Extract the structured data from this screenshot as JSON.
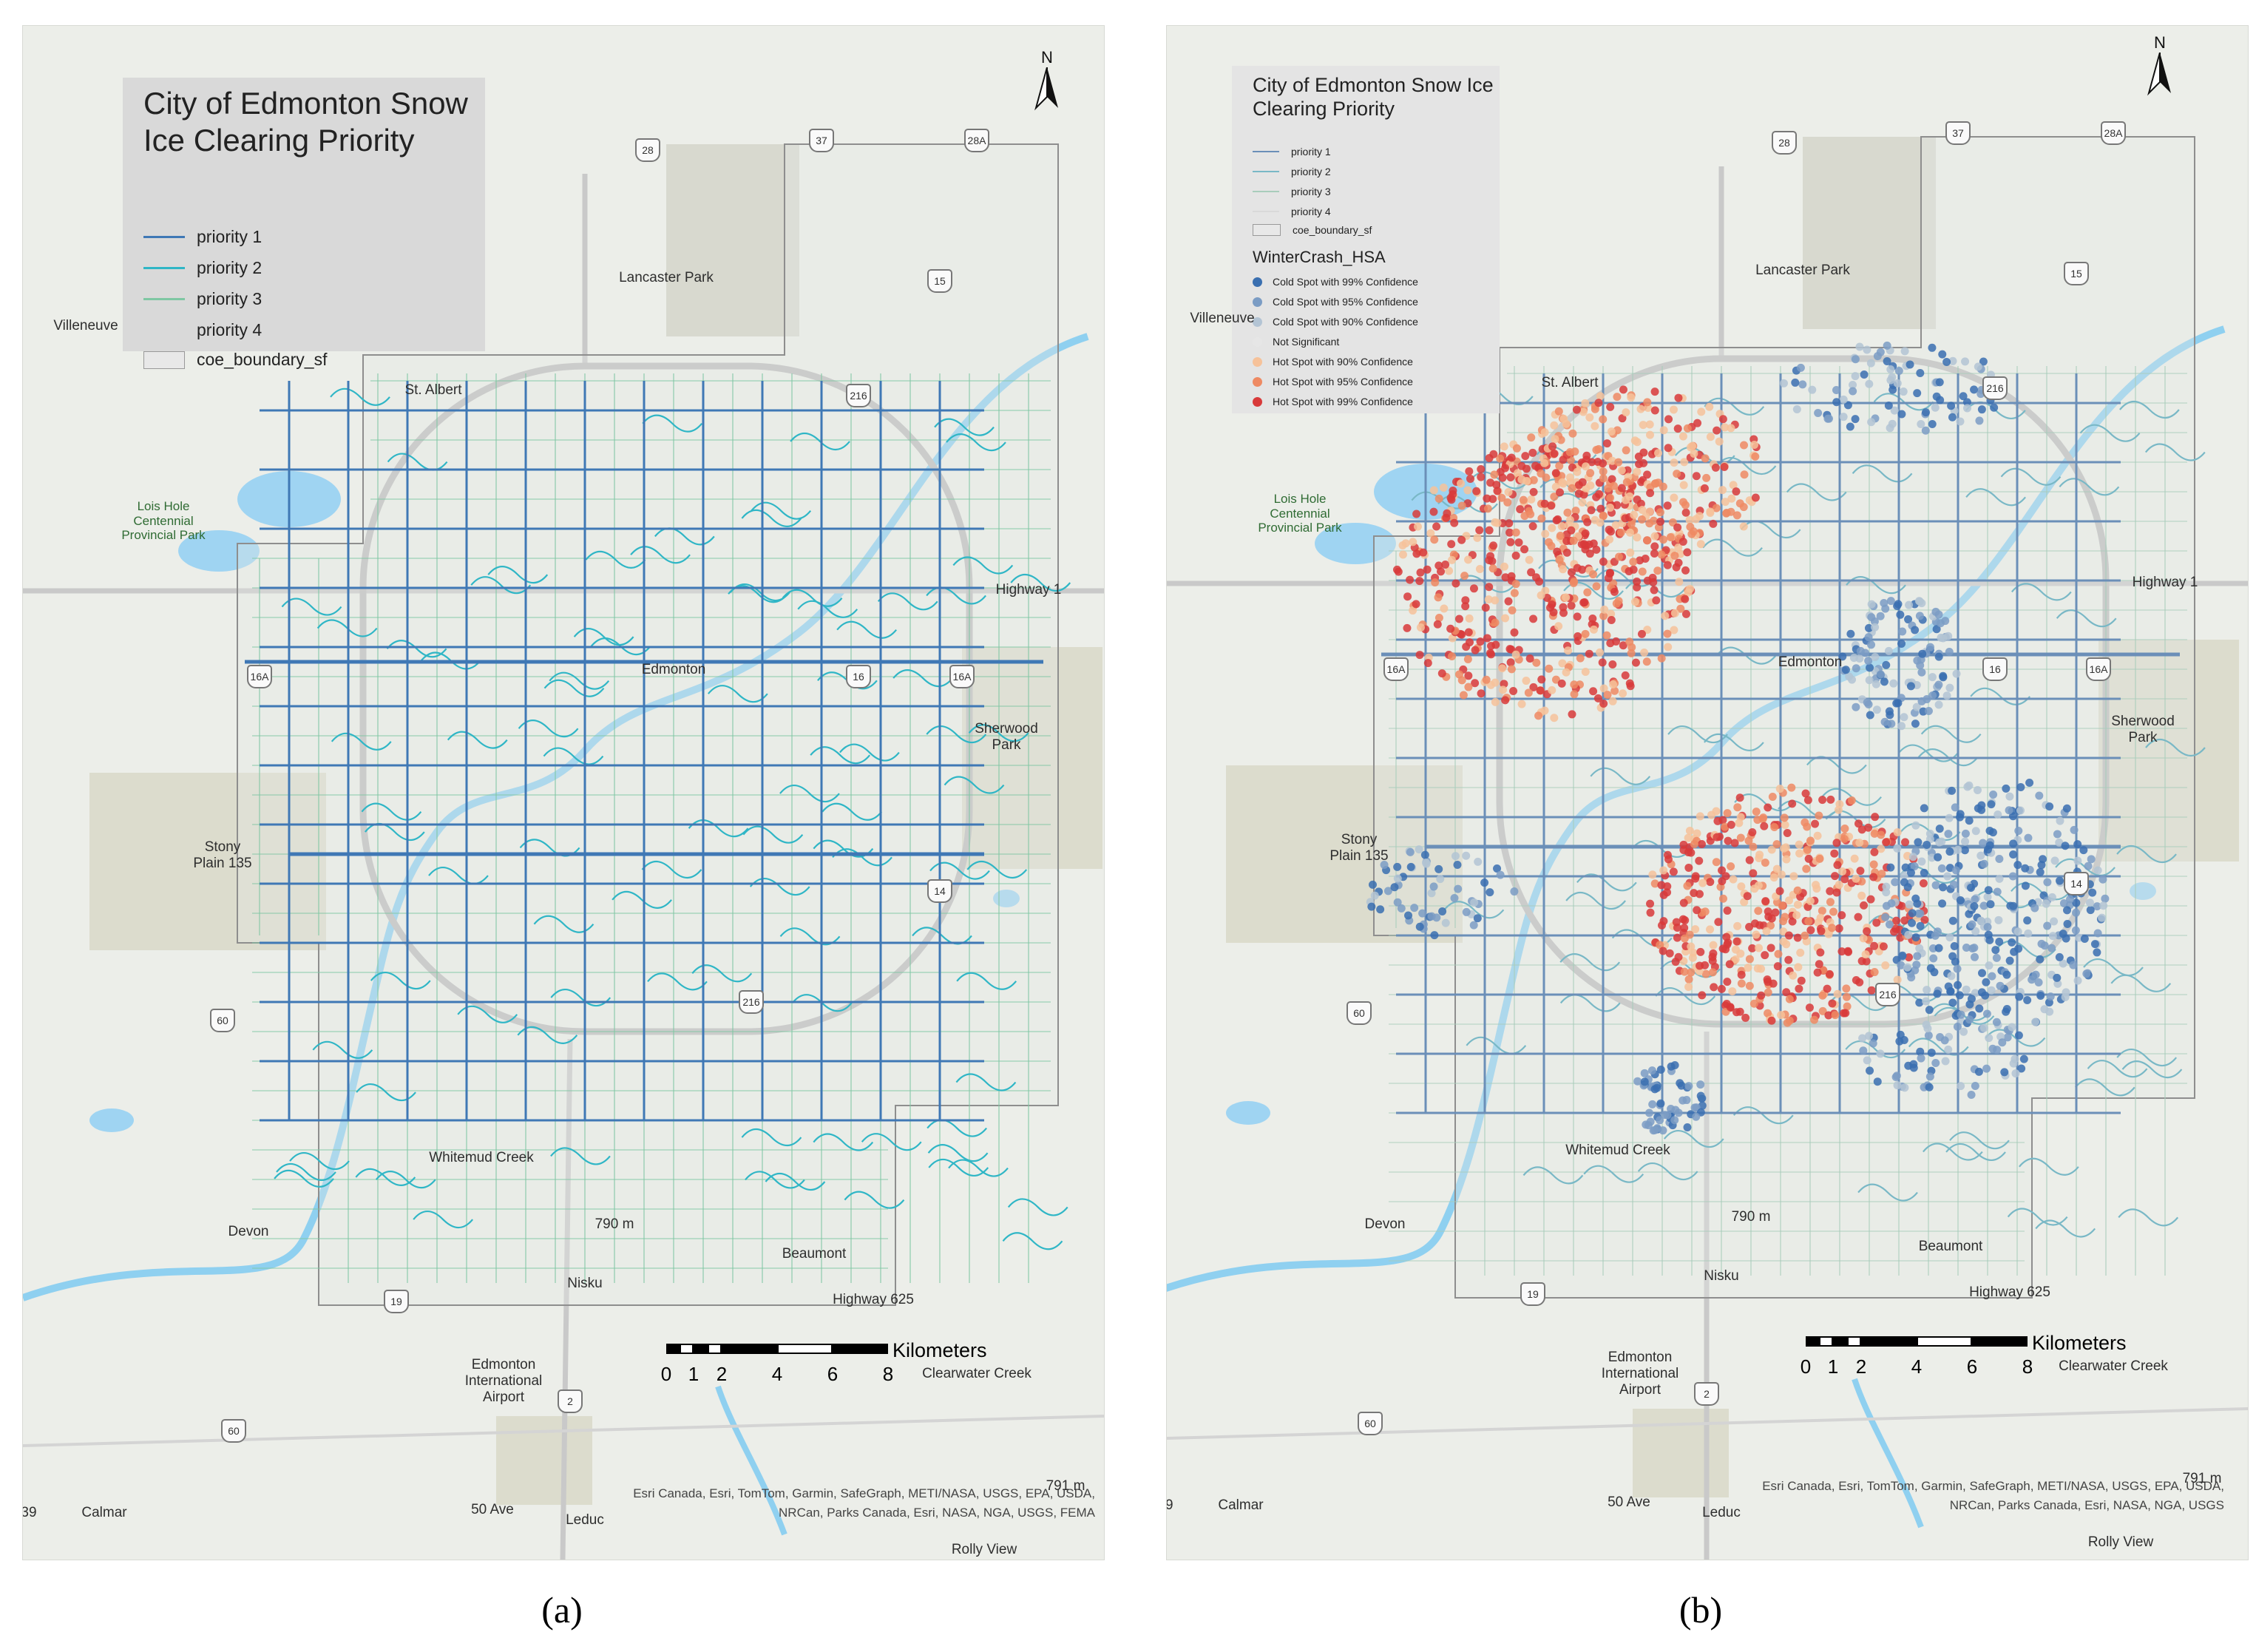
{
  "panel_a": {
    "legend": {
      "title": "City of Edmonton Snow Ice Clearing Priority",
      "items": [
        {
          "label": "priority 1",
          "color": "#3f78b5"
        },
        {
          "label": "priority 2",
          "color": "#2fb6c6"
        },
        {
          "label": "priority 3",
          "color": "#7fc7a3"
        },
        {
          "label": "priority 4",
          "color": "#d9d9d9"
        }
      ],
      "boundary_label": "coe_boundary_sf"
    },
    "caption": "(a)"
  },
  "panel_b": {
    "legend": {
      "title": "City of Edmonton Snow Ice Clearing Priority",
      "items": [
        {
          "label": "priority 1",
          "color": "#6b8fb8"
        },
        {
          "label": "priority 2",
          "color": "#79b8c6"
        },
        {
          "label": "priority 3",
          "color": "#a9cdbb"
        },
        {
          "label": "priority 4",
          "color": "#d9d9d9"
        }
      ],
      "boundary_label": "coe_boundary_sf",
      "hotspot_title": "WinterCrash_HSA",
      "hotspot_classes": [
        {
          "label": "Cold Spot with 99% Confidence",
          "color": "#3a6fb0"
        },
        {
          "label": "Cold Spot with 95% Confidence",
          "color": "#7b9cc4"
        },
        {
          "label": "Cold Spot with 90% Confidence",
          "color": "#b3c4d4"
        },
        {
          "label": "Not Significant",
          "color": "#e6e6e6"
        },
        {
          "label": "Hot Spot with 90% Confidence",
          "color": "#f6c29a"
        },
        {
          "label": "Hot Spot with 95% Confidence",
          "color": "#ee8a63"
        },
        {
          "label": "Hot Spot with 99% Confidence",
          "color": "#d83a3a"
        }
      ]
    },
    "caption": "(b)"
  },
  "map": {
    "north_label": "N",
    "scale": {
      "ticks": [
        "0",
        "1",
        "2",
        "4",
        "6",
        "8"
      ],
      "unit": "Kilometers"
    },
    "places": {
      "villeneuve": "Villeneuve",
      "st_albert": "St. Albert",
      "lancaster_park": "Lancaster Park",
      "lois_hole": "Lois Hole Centennial Provincial Park",
      "edmonton": "Edmonton",
      "sherwood_park": "Sherwood Park",
      "stony_plain": "Stony Plain 135",
      "devon": "Devon",
      "beaumont": "Beaumont",
      "nisku": "Nisku",
      "airport": "Edmonton International Airport",
      "calmar": "Calmar",
      "leduc": "Leduc",
      "rolly_view": "Rolly View",
      "highway_1": "Highway 1",
      "highway_2": "Highway 2",
      "highway_60": "Highway 60",
      "highway_625": "Highway 625",
      "ave_50": "50 Ave",
      "clearwater": "Clearwater Creek",
      "whitemud_creek": "Whitemud Creek",
      "elev_790": "790 m",
      "elev_791": "791 m",
      "edge_39": "39"
    },
    "shields": {
      "h28": "28",
      "h37": "37",
      "h28a": "28A",
      "h15": "15",
      "h216": "216",
      "h16a": "16A",
      "h16": "16",
      "h14": "14",
      "h60": "60",
      "h19": "19",
      "h2": "2"
    },
    "credit_line1": "Esri Canada, Esri, TomTom, Garmin, SafeGraph, METI/NASA, USGS, EPA, USDA,",
    "credit_line2": "NRCan, Parks Canada, Esri, NASA, NGA, USGS, FEMA",
    "credit_line2_b": "NRCan, Parks Canada, Esri, NASA, NGA, USGS"
  }
}
